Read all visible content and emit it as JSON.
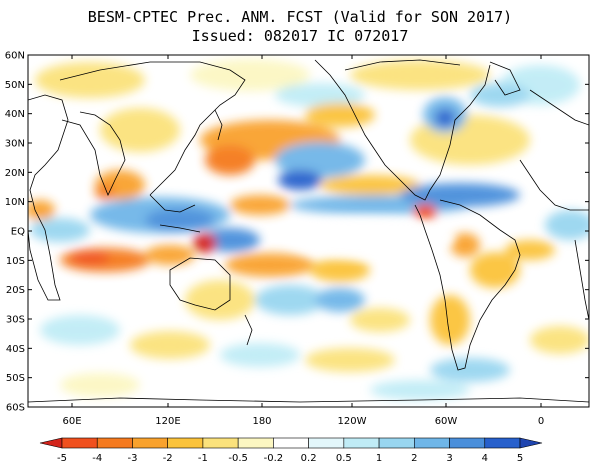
{
  "header": {
    "title": "BESM-CPTEC Prec. ANM. FCST  (Valid for SON 2017)",
    "subtitle": "Issued:  082017 IC 072017"
  },
  "map": {
    "lat_labels": [
      "60N",
      "50N",
      "40N",
      "30N",
      "20N",
      "10N",
      "EQ",
      "10S",
      "20S",
      "30S",
      "40S",
      "50S",
      "60S"
    ],
    "lon_labels": [
      "60E",
      "120E",
      "180",
      "120W",
      "60W",
      "0"
    ]
  },
  "colorbar": {
    "labels": [
      "-5",
      "-4",
      "-3",
      "-2",
      "-1",
      "-0.5",
      "-0.2",
      "0.2",
      "0.5",
      "1",
      "2",
      "3",
      "4",
      "5"
    ],
    "colors": [
      "#d2241b",
      "#f0501e",
      "#f57a1f",
      "#f9a22d",
      "#fbc33b",
      "#fbe27c",
      "#fcf7c2",
      "#ffffff",
      "#e3f7fb",
      "#c0ecf6",
      "#99d6f0",
      "#6fb6e8",
      "#4a8fdb",
      "#2760cc",
      "#1f45b0"
    ]
  }
}
